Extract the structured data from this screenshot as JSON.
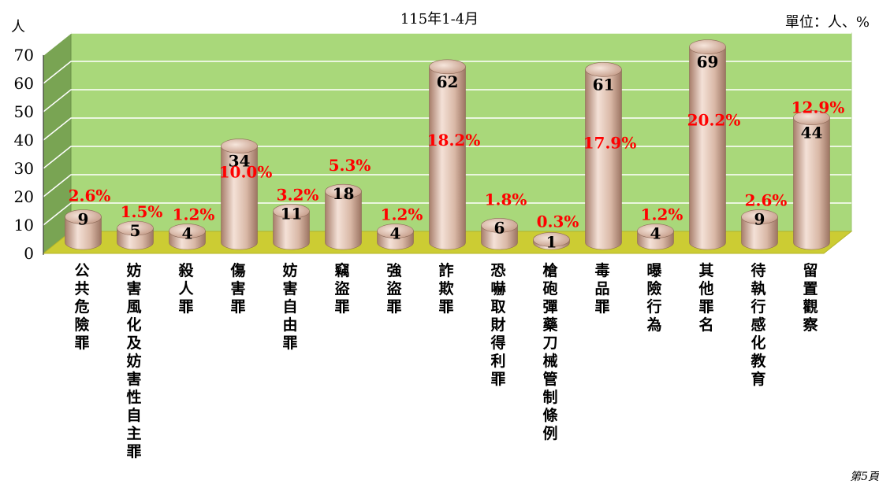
{
  "page": {
    "unit_left": "人",
    "unit_right": "單位：人、%",
    "page_note": "第5頁"
  },
  "chart_data": {
    "type": "bar",
    "title": "115年1-4月",
    "xlabel": "",
    "ylabel": "人",
    "ylim": [
      0,
      70
    ],
    "yticks": [
      0,
      10,
      20,
      30,
      40,
      50,
      60,
      70
    ],
    "grid": true,
    "categories": [
      "公共危險罪",
      "妨害風化及妨害性自主罪",
      "殺人罪",
      "傷害罪",
      "妨害自由罪",
      "竊盜罪",
      "強盜罪",
      "詐欺罪",
      "恐嚇取財得利罪",
      "槍砲彈藥刀械管制條例",
      "毒品罪",
      "曝險行為",
      "其他罪名",
      "待執行感化教育",
      "留置觀察"
    ],
    "values": [
      9,
      5,
      4,
      34,
      11,
      18,
      4,
      62,
      6,
      1,
      61,
      4,
      69,
      9,
      44
    ],
    "percent_labels": [
      "2.6%",
      "1.5%",
      "1.2%",
      "10.0%",
      "3.2%",
      "5.3%",
      "1.2%",
      "18.2%",
      "1.8%",
      "0.3%",
      "17.9%",
      "1.2%",
      "20.2%",
      "2.6%",
      "12.9%"
    ],
    "colors": {
      "wall": "#a9d87a",
      "wall_side": "#79a453",
      "floor": "#cccc33",
      "grid": "#ffffff",
      "bar_light": "#f4e1d7",
      "bar_mid": "#d9b8a6",
      "bar_dark": "#a77d6a",
      "value_label": "#000000",
      "percent_label": "#ff0000"
    }
  }
}
